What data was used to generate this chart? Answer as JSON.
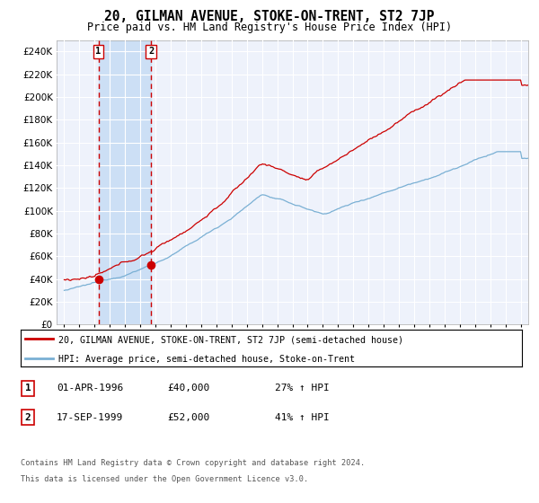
{
  "title": "20, GILMAN AVENUE, STOKE-ON-TRENT, ST2 7JP",
  "subtitle": "Price paid vs. HM Land Registry's House Price Index (HPI)",
  "title_fontsize": 10.5,
  "subtitle_fontsize": 8.5,
  "sale1_date": 1996.25,
  "sale1_price": 40000,
  "sale1_label": "1",
  "sale1_text": "01-APR-1996",
  "sale1_pct": "27% ↑ HPI",
  "sale2_date": 1999.71,
  "sale2_price": 52000,
  "sale2_label": "2",
  "sale2_text": "17-SEP-1999",
  "sale2_pct": "41% ↑ HPI",
  "xlim": [
    1993.5,
    2024.5
  ],
  "ylim": [
    0,
    250000
  ],
  "ytick_step": 20000,
  "background_color": "#ffffff",
  "plot_bg_color": "#eef2fb",
  "grid_color": "#ffffff",
  "red_line_color": "#cc0000",
  "blue_line_color": "#7ab0d4",
  "dashed_color": "#cc0000",
  "shade_color": "#ccdff5",
  "legend_red_label": "20, GILMAN AVENUE, STOKE-ON-TRENT, ST2 7JP (semi-detached house)",
  "legend_blue_label": "HPI: Average price, semi-detached house, Stoke-on-Trent",
  "footer1": "Contains HM Land Registry data © Crown copyright and database right 2024.",
  "footer2": "This data is licensed under the Open Government Licence v3.0."
}
